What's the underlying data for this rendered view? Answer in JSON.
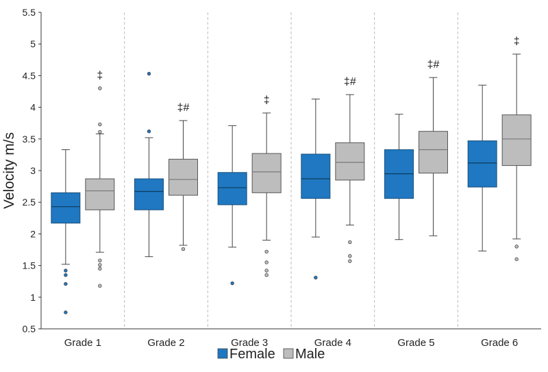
{
  "chart_data": {
    "type": "boxplot",
    "ylabel": "Velocity m/s",
    "ylim": [
      0.5,
      5.5
    ],
    "yticks": [
      "0.5",
      "1",
      "1.5",
      "2",
      "2.5",
      "3",
      "3.5",
      "4",
      "4.5",
      "5",
      "5.5"
    ],
    "categories": [
      "Grade 1",
      "Grade 2",
      "Grade 3",
      "Grade 4",
      "Grade 5",
      "Grade 6"
    ],
    "legend_position": "bottom",
    "colors": {
      "Female": "#1f78c1",
      "Male": "#bdbdbd"
    },
    "series": [
      {
        "name": "Female",
        "boxes": [
          {
            "whisker_low": 1.52,
            "q1": 2.17,
            "median": 2.43,
            "q3": 2.65,
            "whisker_high": 3.33,
            "outliers": [
              1.42,
              1.35,
              1.21,
              0.76
            ]
          },
          {
            "whisker_low": 1.64,
            "q1": 2.38,
            "median": 2.67,
            "q3": 2.87,
            "whisker_high": 3.52,
            "outliers": [
              4.53,
              3.62
            ]
          },
          {
            "whisker_low": 1.79,
            "q1": 2.46,
            "median": 2.73,
            "q3": 2.97,
            "whisker_high": 3.71,
            "outliers": [
              1.22
            ]
          },
          {
            "whisker_low": 1.95,
            "q1": 2.56,
            "median": 2.87,
            "q3": 3.26,
            "whisker_high": 4.13,
            "outliers": [
              1.31
            ]
          },
          {
            "whisker_low": 1.91,
            "q1": 2.56,
            "median": 2.95,
            "q3": 3.33,
            "whisker_high": 3.89,
            "outliers": []
          },
          {
            "whisker_low": 1.73,
            "q1": 2.74,
            "median": 3.12,
            "q3": 3.47,
            "whisker_high": 4.35,
            "outliers": []
          }
        ]
      },
      {
        "name": "Male",
        "boxes": [
          {
            "whisker_low": 1.71,
            "q1": 2.38,
            "median": 2.68,
            "q3": 2.87,
            "whisker_high": 3.58,
            "outliers": [
              4.3,
              3.73,
              3.61,
              1.58,
              1.51,
              1.45,
              1.18
            ]
          },
          {
            "whisker_low": 1.82,
            "q1": 2.61,
            "median": 2.86,
            "q3": 3.18,
            "whisker_high": 3.79,
            "outliers": [
              1.76
            ]
          },
          {
            "whisker_low": 1.9,
            "q1": 2.65,
            "median": 2.98,
            "q3": 3.27,
            "whisker_high": 3.91,
            "outliers": [
              1.72,
              1.55,
              1.42,
              1.35
            ]
          },
          {
            "whisker_low": 2.14,
            "q1": 2.85,
            "median": 3.13,
            "q3": 3.44,
            "whisker_high": 4.2,
            "outliers": [
              1.87,
              1.65,
              1.57
            ]
          },
          {
            "whisker_low": 1.97,
            "q1": 2.96,
            "median": 3.33,
            "q3": 3.62,
            "whisker_high": 4.47,
            "outliers": []
          },
          {
            "whisker_low": 1.92,
            "q1": 3.08,
            "median": 3.5,
            "q3": 3.88,
            "whisker_high": 4.84,
            "outliers": [
              1.8,
              1.6
            ]
          }
        ]
      }
    ],
    "annotations": [
      "‡",
      "‡#",
      "‡",
      "‡#",
      "‡#",
      "‡"
    ]
  }
}
